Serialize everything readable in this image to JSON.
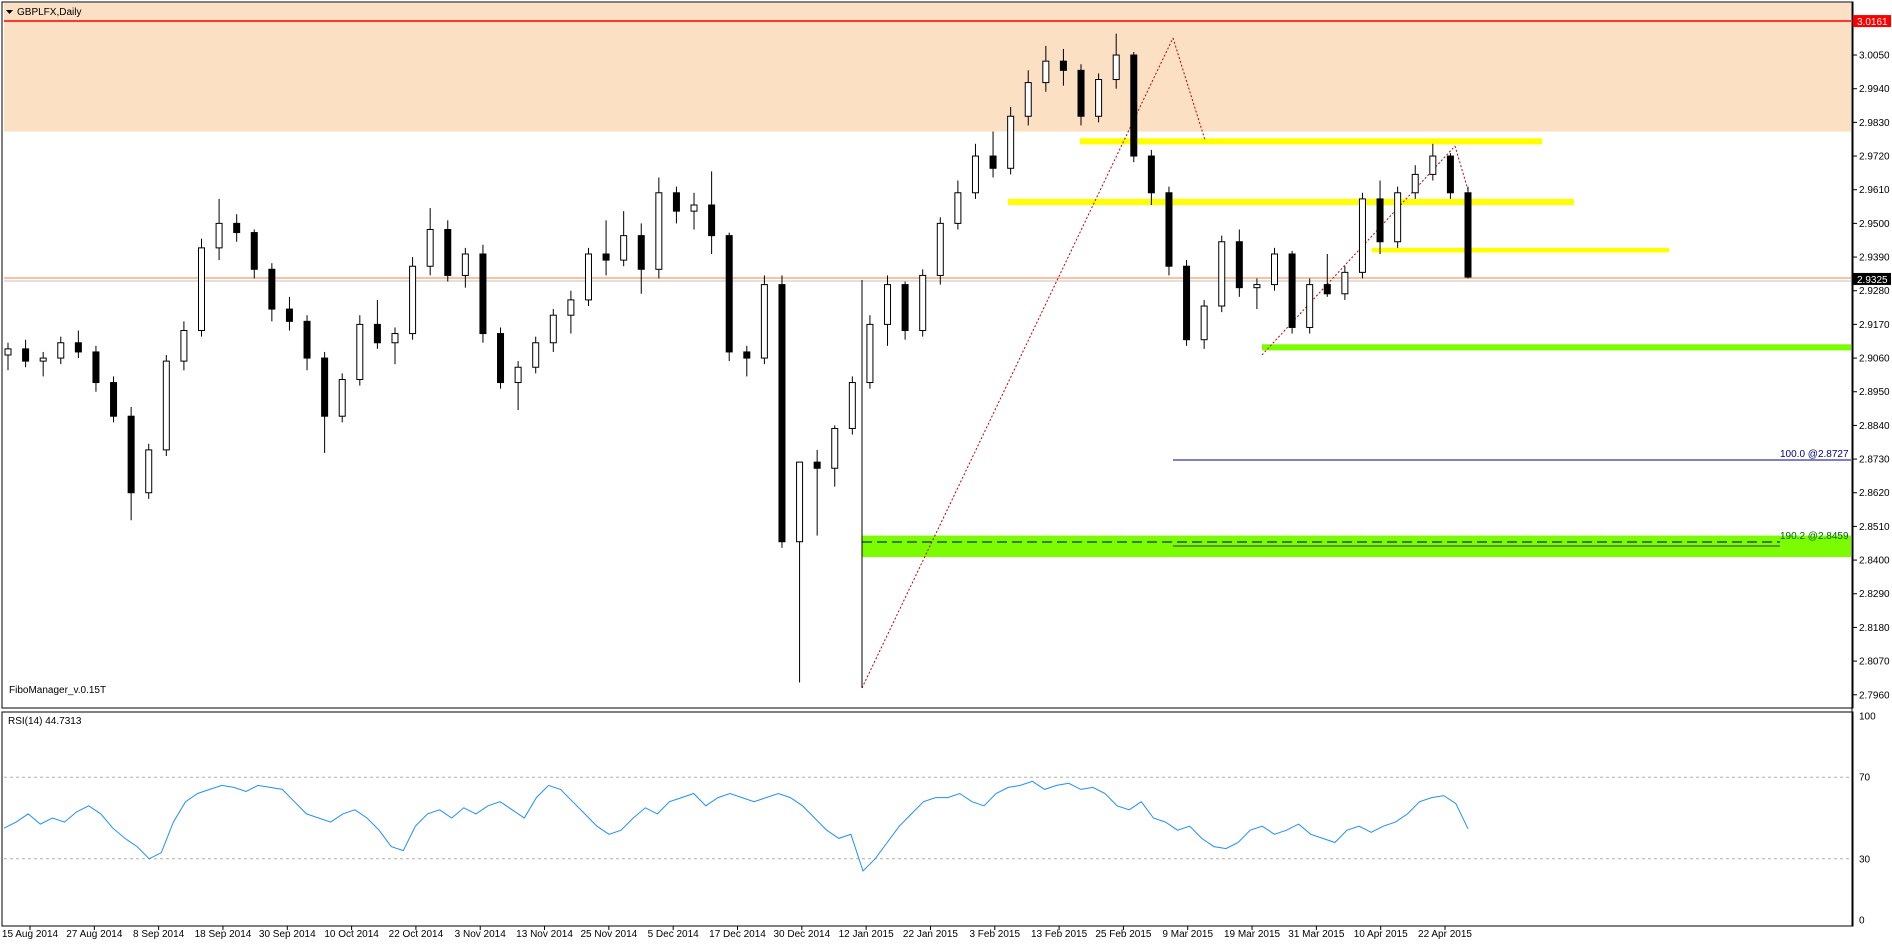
{
  "window": {
    "symbol_title": "GBPLFX,Daily",
    "indicator_label": "FiboManager_v.0.15T",
    "rsi_label": "RSI(14) 44.7313"
  },
  "price_axis": {
    "ticks": [
      "3.0050",
      "2.9940",
      "2.9830",
      "2.9720",
      "2.9610",
      "2.9500",
      "2.9390",
      "2.9280",
      "2.9170",
      "2.9060",
      "2.8950",
      "2.8840",
      "2.8730",
      "2.8620",
      "2.8510",
      "2.8400",
      "2.8290",
      "2.8180",
      "2.8070",
      "2.7960"
    ],
    "tick_values": [
      3.005,
      2.994,
      2.983,
      2.972,
      2.961,
      2.95,
      2.939,
      2.928,
      2.917,
      2.906,
      2.895,
      2.884,
      2.873,
      2.862,
      2.851,
      2.84,
      2.829,
      2.818,
      2.807,
      2.796
    ],
    "resistance_label": "3.0161",
    "current_price_label": "2.9325"
  },
  "rsi_axis": {
    "ticks": [
      "100",
      "70",
      "30",
      "0"
    ],
    "levels": [
      100,
      70,
      30,
      0
    ]
  },
  "date_axis": {
    "labels": [
      "15 Aug 2014",
      "27 Aug 2014",
      "8 Sep 2014",
      "18 Sep 2014",
      "30 Sep 2014",
      "10 Oct 2014",
      "22 Oct 2014",
      "3 Nov 2014",
      "13 Nov 2014",
      "25 Nov 2014",
      "5 Dec 2014",
      "17 Dec 2014",
      "30 Dec 2014",
      "12 Jan 2015",
      "22 Jan 2015",
      "3 Feb 2015",
      "13 Feb 2015",
      "25 Feb 2015",
      "9 Mar 2015",
      "19 Mar 2015",
      "31 Mar 2015",
      "10 Apr 2015",
      "22 Apr 2015"
    ]
  },
  "fib_labels": {
    "level_100": "100.0    @2.8727",
    "level_190": "190.2    @2.8459"
  },
  "chart_data": {
    "type": "candlestick",
    "symbol": "GBPLFX",
    "timeframe": "Daily",
    "ylim": [
      2.792,
      3.022
    ],
    "resistance_line": 3.0161,
    "current_price": 2.9325,
    "zones": [
      {
        "name": "supply",
        "from": 2.98,
        "to": 3.022,
        "color": "#fbe0c4"
      },
      {
        "name": "yellow-1",
        "from": 2.9758,
        "to": 2.9778,
        "color": "#ffff00"
      },
      {
        "name": "yellow-2",
        "from": 2.956,
        "to": 2.958,
        "color": "#ffff00"
      },
      {
        "name": "yellow-3",
        "from": 2.9405,
        "to": 2.942,
        "color": "#ffff00"
      },
      {
        "name": "green-1",
        "from": 2.9085,
        "to": 2.9105,
        "color": "#7cfc00"
      },
      {
        "name": "green-2",
        "from": 2.841,
        "to": 2.848,
        "color": "#7cfc00"
      }
    ],
    "fib_levels": [
      {
        "level": "100.0",
        "price": 2.8727
      },
      {
        "level": "190.2",
        "price": 2.8459
      }
    ],
    "candles_ohlc_sample": [
      [
        2.907,
        2.911,
        2.902,
        2.909
      ],
      [
        2.909,
        2.912,
        2.903,
        2.905
      ],
      [
        2.905,
        2.908,
        2.9,
        2.906
      ],
      [
        2.906,
        2.913,
        2.904,
        2.911
      ],
      [
        2.911,
        2.915,
        2.906,
        2.908
      ],
      [
        2.908,
        2.91,
        2.895,
        2.898
      ],
      [
        2.898,
        2.9,
        2.885,
        2.887
      ],
      [
        2.887,
        2.89,
        2.853,
        2.862
      ],
      [
        2.862,
        2.878,
        2.86,
        2.876
      ],
      [
        2.876,
        2.907,
        2.874,
        2.905
      ],
      [
        2.905,
        2.918,
        2.902,
        2.915
      ],
      [
        2.915,
        2.945,
        2.913,
        2.942
      ],
      [
        2.942,
        2.958,
        2.938,
        2.95
      ],
      [
        2.95,
        2.953,
        2.944,
        2.947
      ],
      [
        2.947,
        2.948,
        2.932,
        2.935
      ],
      [
        2.935,
        2.937,
        2.918,
        2.922
      ],
      [
        2.922,
        2.926,
        2.915,
        2.918
      ],
      [
        2.918,
        2.92,
        2.902,
        2.906
      ],
      [
        2.906,
        2.908,
        2.875,
        2.887
      ],
      [
        2.887,
        2.901,
        2.885,
        2.899
      ],
      [
        2.899,
        2.92,
        2.897,
        2.917
      ],
      [
        2.917,
        2.925,
        2.909,
        2.911
      ],
      [
        2.911,
        2.916,
        2.904,
        2.914
      ],
      [
        2.914,
        2.939,
        2.912,
        2.936
      ],
      [
        2.936,
        2.955,
        2.933,
        2.948
      ],
      [
        2.948,
        2.951,
        2.931,
        2.933
      ],
      [
        2.933,
        2.942,
        2.929,
        2.94
      ],
      [
        2.94,
        2.943,
        2.911,
        2.914
      ],
      [
        2.914,
        2.916,
        2.896,
        2.898
      ],
      [
        2.898,
        2.905,
        2.889,
        2.903
      ],
      [
        2.903,
        2.913,
        2.901,
        2.911
      ],
      [
        2.911,
        2.922,
        2.908,
        2.92
      ],
      [
        2.92,
        2.928,
        2.914,
        2.925
      ],
      [
        2.925,
        2.942,
        2.923,
        2.94
      ],
      [
        2.94,
        2.951,
        2.933,
        2.938
      ],
      [
        2.938,
        2.954,
        2.936,
        2.946
      ],
      [
        2.946,
        2.95,
        2.927,
        2.935
      ],
      [
        2.935,
        2.965,
        2.932,
        2.96
      ],
      [
        2.96,
        2.962,
        2.95,
        2.954
      ],
      [
        2.954,
        2.96,
        2.948,
        2.956
      ],
      [
        2.956,
        2.967,
        2.94,
        2.946
      ],
      [
        2.946,
        2.947,
        2.905,
        2.908
      ],
      [
        2.908,
        2.91,
        2.9,
        2.906
      ],
      [
        2.906,
        2.933,
        2.904,
        2.93
      ],
      [
        2.93,
        2.933,
        2.844,
        2.846
      ],
      [
        2.846,
        2.852,
        2.8,
        2.872
      ],
      [
        2.872,
        2.876,
        2.848,
        2.87
      ],
      [
        2.87,
        2.884,
        2.864,
        2.883
      ],
      [
        2.883,
        2.9,
        2.881,
        2.898
      ],
      [
        2.898,
        2.92,
        2.896,
        2.917
      ],
      [
        2.917,
        2.933,
        2.91,
        2.93
      ],
      [
        2.93,
        2.931,
        2.912,
        2.915
      ],
      [
        2.915,
        2.935,
        2.913,
        2.933
      ],
      [
        2.933,
        2.952,
        2.93,
        2.95
      ],
      [
        2.95,
        2.964,
        2.948,
        2.96
      ],
      [
        2.96,
        2.976,
        2.958,
        2.972
      ],
      [
        2.972,
        2.98,
        2.965,
        2.968
      ],
      [
        2.968,
        2.988,
        2.966,
        2.985
      ],
      [
        2.985,
        3.0,
        2.982,
        2.996
      ],
      [
        2.996,
        3.008,
        2.993,
        3.003
      ],
      [
        3.003,
        3.007,
        2.995,
        3.0
      ],
      [
        3.0,
        3.002,
        2.982,
        2.985
      ],
      [
        2.985,
        2.999,
        2.983,
        2.997
      ],
      [
        2.997,
        3.012,
        2.994,
        3.005
      ],
      [
        3.005,
        3.006,
        2.97,
        2.972
      ],
      [
        2.972,
        2.974,
        2.956,
        2.96
      ],
      [
        2.96,
        2.962,
        2.933,
        2.936
      ],
      [
        2.936,
        2.938,
        2.91,
        2.912
      ],
      [
        2.912,
        2.925,
        2.909,
        2.923
      ],
      [
        2.923,
        2.946,
        2.921,
        2.944
      ],
      [
        2.944,
        2.948,
        2.926,
        2.929
      ],
      [
        2.929,
        2.932,
        2.922,
        2.93
      ],
      [
        2.93,
        2.942,
        2.928,
        2.94
      ],
      [
        2.94,
        2.941,
        2.914,
        2.916
      ],
      [
        2.916,
        2.932,
        2.914,
        2.93
      ],
      [
        2.93,
        2.94,
        2.926,
        2.927
      ],
      [
        2.927,
        2.936,
        2.925,
        2.934
      ],
      [
        2.934,
        2.96,
        2.932,
        2.958
      ],
      [
        2.958,
        2.964,
        2.94,
        2.944
      ],
      [
        2.944,
        2.962,
        2.942,
        2.96
      ],
      [
        2.96,
        2.969,
        2.958,
        2.966
      ],
      [
        2.966,
        2.976,
        2.964,
        2.972
      ],
      [
        2.972,
        2.973,
        2.958,
        2.96
      ],
      [
        2.96,
        2.962,
        2.932,
        2.9325
      ]
    ],
    "rsi": {
      "name": "RSI(14)",
      "last": 44.7313,
      "levels": [
        70,
        30
      ],
      "ylim": [
        0,
        100
      ],
      "values": [
        45,
        48,
        52,
        47,
        50,
        48,
        53,
        56,
        52,
        45,
        40,
        36,
        30,
        33,
        48,
        58,
        62,
        64,
        66,
        65,
        63,
        66,
        65,
        64,
        58,
        52,
        50,
        48,
        52,
        54,
        50,
        44,
        36,
        34,
        46,
        52,
        54,
        50,
        55,
        52,
        56,
        58,
        54,
        50,
        60,
        66,
        64,
        58,
        52,
        46,
        42,
        44,
        50,
        55,
        52,
        58,
        60,
        62,
        56,
        60,
        62,
        60,
        58,
        60,
        62,
        60,
        56,
        50,
        44,
        40,
        42,
        24,
        30,
        38,
        46,
        52,
        58,
        60,
        60,
        62,
        58,
        56,
        62,
        65,
        66,
        68,
        64,
        66,
        67,
        64,
        65,
        62,
        56,
        54,
        58,
        50,
        48,
        44,
        46,
        40,
        36,
        35,
        38,
        44,
        46,
        42,
        44,
        47,
        42,
        40,
        38,
        44,
        46,
        43,
        46,
        48,
        52,
        58,
        60,
        61,
        57,
        44.73
      ]
    }
  }
}
